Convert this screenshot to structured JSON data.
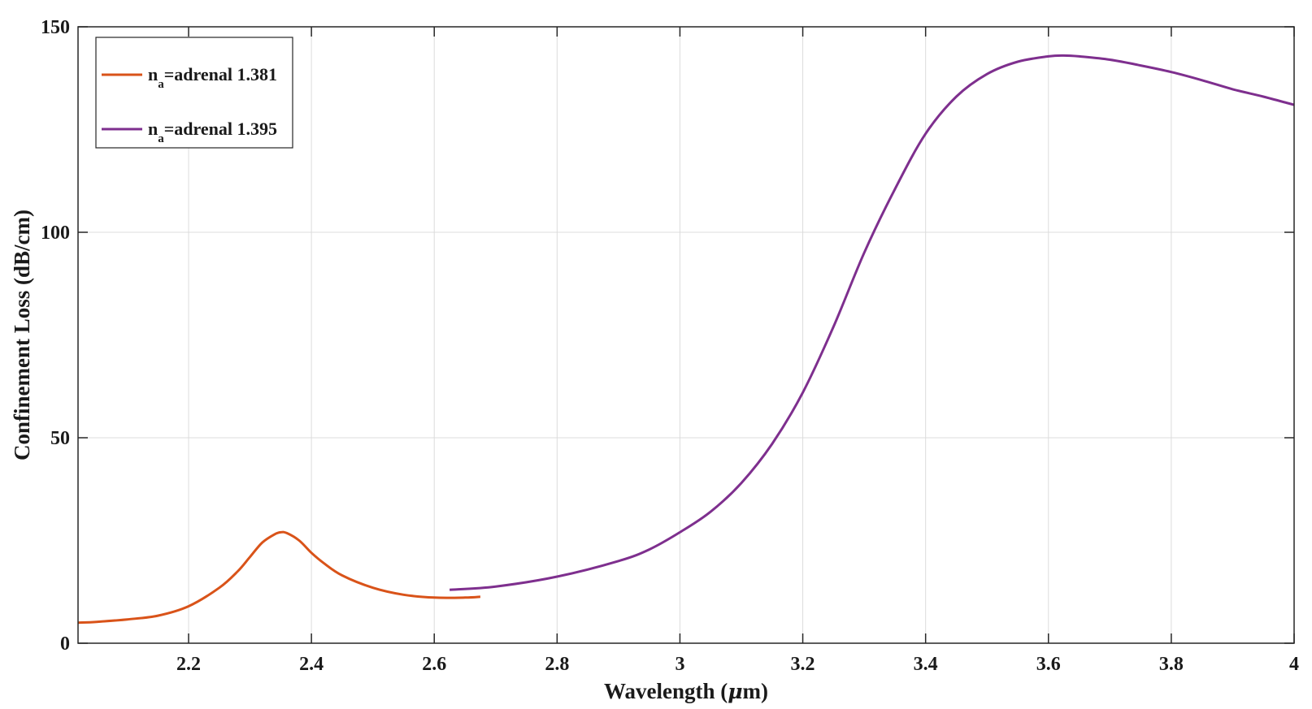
{
  "chart_data": {
    "type": "line",
    "xlabel": "Wavelength",
    "xlabel_unit_prefix": "(",
    "xlabel_unit_mu": "μ",
    "xlabel_unit_suffix": "m)",
    "ylabel": "Confinement Loss (dB/cm)",
    "xlim": [
      2.02,
      4.0
    ],
    "ylim": [
      0,
      150
    ],
    "x_ticks": [
      2.2,
      2.4,
      2.6,
      2.8,
      3.0,
      3.2,
      3.4,
      3.6,
      3.8,
      4.0
    ],
    "x_tick_labels": [
      "2.2",
      "2.4",
      "2.6",
      "2.8",
      "3",
      "3.2",
      "3.4",
      "3.6",
      "3.8",
      "4"
    ],
    "y_ticks": [
      0,
      50,
      100,
      150
    ],
    "y_tick_labels": [
      "0",
      "50",
      "100",
      "150"
    ],
    "grid": true,
    "legend_position": "top-left",
    "series": [
      {
        "name_main": "n",
        "name_sub": "a",
        "name_rest": "=adrenal 1.381",
        "color": "#d95319",
        "x": [
          2.02,
          2.05,
          2.1,
          2.15,
          2.2,
          2.25,
          2.28,
          2.3,
          2.32,
          2.34,
          2.35,
          2.36,
          2.38,
          2.4,
          2.42,
          2.45,
          2.5,
          2.55,
          2.6,
          2.65,
          2.675
        ],
        "y": [
          5.0,
          5.2,
          5.8,
          6.7,
          9.0,
          13.5,
          17.5,
          21.0,
          24.5,
          26.5,
          27.0,
          26.8,
          25.0,
          22.0,
          19.5,
          16.5,
          13.5,
          11.8,
          11.1,
          11.1,
          11.3
        ]
      },
      {
        "name_main": "n",
        "name_sub": "a",
        "name_rest": "=adrenal 1.395",
        "color": "#7e2f8e",
        "x": [
          2.625,
          2.7,
          2.8,
          2.9,
          2.95,
          3.0,
          3.05,
          3.1,
          3.15,
          3.2,
          3.25,
          3.3,
          3.35,
          3.4,
          3.45,
          3.5,
          3.55,
          3.6,
          3.625,
          3.65,
          3.7,
          3.75,
          3.8,
          3.85,
          3.9,
          3.95,
          4.0
        ],
        "y": [
          13.0,
          13.8,
          16.2,
          20.0,
          22.8,
          27.0,
          32.0,
          39.0,
          48.5,
          61.0,
          77.0,
          95.0,
          110.5,
          124.0,
          133.0,
          138.5,
          141.5,
          142.8,
          143.0,
          142.8,
          142.0,
          140.6,
          139.0,
          137.0,
          134.8,
          133.0,
          131.0
        ]
      }
    ]
  }
}
